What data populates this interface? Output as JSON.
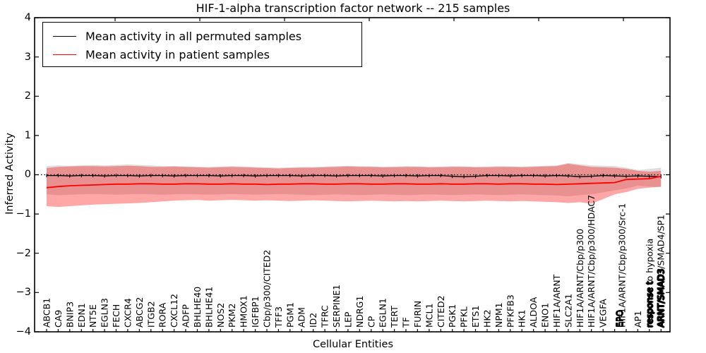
{
  "title": "HIF-1-alpha transcription factor network -- 215 samples",
  "axes": {
    "xlabel": "Cellular Entities",
    "ylabel": "Inferred Activity",
    "yticks": [
      "4",
      "3",
      "2",
      "1",
      "0",
      "−1",
      "−2",
      "−3",
      "−4"
    ],
    "ylim": [
      -4,
      4
    ]
  },
  "legend": {
    "entries": [
      {
        "label": "Mean activity in all permuted samples",
        "color": "#000000"
      },
      {
        "label": "Mean activity in patient samples",
        "color": "#ff0000"
      }
    ]
  },
  "colors": {
    "permuted_line": "#000000",
    "patient_line": "#ff0000",
    "patient_band_fill": "rgba(255,0,0,0.35)",
    "permuted_band_fill": "rgba(0,0,0,0.13)",
    "zero_line": "#000000",
    "axis": "#000000"
  },
  "chart_data": {
    "type": "line",
    "title": "HIF-1-alpha transcription factor network -- 215 samples",
    "xlabel": "Cellular Entities",
    "ylabel": "Inferred Activity",
    "ylim": [
      -4,
      4
    ],
    "grid": false,
    "legend_position": "upper left",
    "categories": [
      "ABCB1",
      "CA9",
      "BNIP3",
      "EDN1",
      "NT5E",
      "EGLN3",
      "FECH",
      "CXCR4",
      "ABCG2",
      "ITGB2",
      "RORA",
      "CXCL12",
      "ADFP",
      "BHLHE40",
      "BHLHE41",
      "NOS2",
      "PKM2",
      "HMOX1",
      "IGFBP1",
      "Cbp/p300/CITED2",
      "TFF3",
      "PGM1",
      "ADM",
      "ID2",
      "TFRC",
      "SERPINE1",
      "LEP",
      "NDRG1",
      "CP",
      "EGLN1",
      "TERT",
      "TF",
      "FURIN",
      "MCL1",
      "CITED2",
      "PGK1",
      "PFKL",
      "ETS1",
      "HK2",
      "NPM1",
      "PFKFB3",
      "HK1",
      "ALDOA",
      "ENO1",
      "HIF1A/ARNT",
      "SLC2A1",
      "HIF1A/ARNT/Cbp/p300",
      "HIF1A/ARNT/Cbp/p300/HDAC7",
      "VEGFA",
      "EPO",
      "HIF1A/ARNT/Cbp/p300/Src-1",
      "AP1",
      "response to hypoxia",
      "ARNT/SMAD3/SMAD4/SP1"
    ],
    "series": [
      {
        "name": "Mean activity in all permuted samples",
        "color": "#000000",
        "values": [
          -0.02,
          -0.02,
          -0.03,
          -0.02,
          -0.02,
          -0.03,
          -0.02,
          -0.02,
          -0.03,
          -0.02,
          -0.02,
          -0.03,
          -0.02,
          -0.02,
          -0.02,
          -0.03,
          -0.02,
          -0.02,
          -0.03,
          -0.02,
          -0.02,
          -0.02,
          -0.03,
          -0.02,
          -0.02,
          -0.03,
          -0.02,
          -0.02,
          -0.02,
          -0.03,
          -0.02,
          -0.02,
          -0.03,
          -0.02,
          -0.02,
          -0.04,
          -0.05,
          -0.04,
          -0.02,
          -0.02,
          -0.03,
          -0.02,
          -0.02,
          -0.03,
          -0.02,
          -0.03,
          -0.05,
          -0.04,
          -0.02,
          -0.03,
          -0.04,
          -0.03,
          -0.04,
          -0.05
        ]
      },
      {
        "name": "Mean activity in patient samples",
        "color": "#ff0000",
        "values": [
          -0.33,
          -0.3,
          -0.28,
          -0.27,
          -0.26,
          -0.25,
          -0.24,
          -0.24,
          -0.23,
          -0.23,
          -0.24,
          -0.24,
          -0.23,
          -0.23,
          -0.24,
          -0.24,
          -0.23,
          -0.24,
          -0.24,
          -0.25,
          -0.24,
          -0.24,
          -0.23,
          -0.23,
          -0.24,
          -0.24,
          -0.23,
          -0.23,
          -0.24,
          -0.24,
          -0.23,
          -0.23,
          -0.24,
          -0.24,
          -0.23,
          -0.24,
          -0.24,
          -0.23,
          -0.23,
          -0.24,
          -0.23,
          -0.23,
          -0.24,
          -0.24,
          -0.25,
          -0.24,
          -0.23,
          -0.22,
          -0.21,
          -0.2,
          -0.12,
          -0.11,
          -0.1,
          -0.04
        ]
      }
    ],
    "bands": [
      {
        "name": "permuted-sample-range",
        "color": "rgba(0,0,0,0.13)",
        "upper": [
          0.22,
          0.24,
          0.23,
          0.24,
          0.25,
          0.24,
          0.25,
          0.26,
          0.25,
          0.24,
          0.22,
          0.22,
          0.21,
          0.2,
          0.2,
          0.21,
          0.22,
          0.21,
          0.2,
          0.19,
          0.18,
          0.19,
          0.2,
          0.2,
          0.21,
          0.22,
          0.23,
          0.22,
          0.21,
          0.2,
          0.21,
          0.22,
          0.21,
          0.2,
          0.21,
          0.22,
          0.21,
          0.2,
          0.21,
          0.22,
          0.21,
          0.21,
          0.22,
          0.23,
          0.24,
          0.3,
          0.27,
          0.24,
          0.23,
          0.22,
          0.18,
          0.12,
          0.15,
          0.18
        ],
        "lower": [
          -0.5,
          -0.52,
          -0.51,
          -0.5,
          -0.49,
          -0.5,
          -0.51,
          -0.5,
          -0.49,
          -0.5,
          -0.51,
          -0.5,
          -0.49,
          -0.5,
          -0.51,
          -0.5,
          -0.49,
          -0.5,
          -0.51,
          -0.5,
          -0.49,
          -0.5,
          -0.51,
          -0.52,
          -0.51,
          -0.5,
          -0.51,
          -0.52,
          -0.51,
          -0.5,
          -0.51,
          -0.52,
          -0.51,
          -0.5,
          -0.51,
          -0.52,
          -0.51,
          -0.5,
          -0.51,
          -0.52,
          -0.51,
          -0.5,
          -0.51,
          -0.52,
          -0.53,
          -0.55,
          -0.52,
          -0.5,
          -0.45,
          -0.4,
          -0.35,
          -0.28,
          -0.3,
          -0.32
        ]
      },
      {
        "name": "patient-sample-range",
        "color": "rgba(255,0,0,0.35)",
        "upper": [
          0.17,
          0.2,
          0.21,
          0.22,
          0.22,
          0.21,
          0.22,
          0.23,
          0.22,
          0.2,
          0.2,
          0.21,
          0.2,
          0.19,
          0.18,
          0.19,
          0.2,
          0.19,
          0.18,
          0.17,
          0.16,
          0.17,
          0.18,
          0.18,
          0.19,
          0.2,
          0.21,
          0.2,
          0.2,
          0.19,
          0.19,
          0.2,
          0.2,
          0.19,
          0.19,
          0.2,
          0.2,
          0.19,
          0.19,
          0.2,
          0.2,
          0.19,
          0.2,
          0.21,
          0.22,
          0.28,
          0.24,
          0.2,
          0.19,
          0.18,
          0.15,
          0.1,
          0.08,
          0.1
        ],
        "lower": [
          -0.8,
          -0.82,
          -0.8,
          -0.78,
          -0.76,
          -0.75,
          -0.74,
          -0.73,
          -0.72,
          -0.7,
          -0.68,
          -0.66,
          -0.65,
          -0.64,
          -0.66,
          -0.65,
          -0.64,
          -0.65,
          -0.66,
          -0.65,
          -0.66,
          -0.67,
          -0.66,
          -0.65,
          -0.66,
          -0.67,
          -0.68,
          -0.67,
          -0.66,
          -0.67,
          -0.68,
          -0.67,
          -0.68,
          -0.67,
          -0.66,
          -0.67,
          -0.68,
          -0.67,
          -0.66,
          -0.67,
          -0.68,
          -0.67,
          -0.68,
          -0.69,
          -0.7,
          -0.72,
          -0.7,
          -0.74,
          -0.62,
          -0.5,
          -0.44,
          -0.36,
          -0.33,
          -0.3
        ]
      }
    ],
    "zero_reference_line": 0
  }
}
